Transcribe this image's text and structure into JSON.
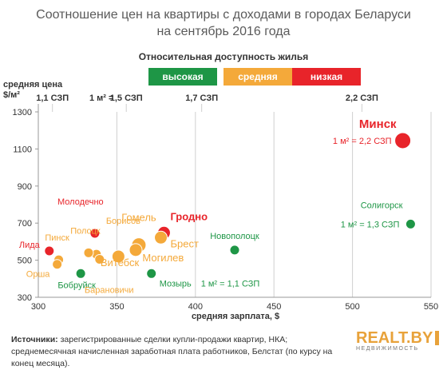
{
  "title_line1": "Соотношение цен на квартиры с доходами в городах Беларуси",
  "title_line2": "на сентябрь 2016 года",
  "legend": {
    "title": "Относительная доступность жилья",
    "items": [
      {
        "label": "высокая",
        "color": "#1e9646"
      },
      {
        "label": "средняя",
        "color": "#f4a93a"
      },
      {
        "label": "низкая",
        "color": "#e8242a"
      }
    ]
  },
  "ylabel_line1": "средняя цена",
  "ylabel_line2": "$/м²",
  "xlabel": "средняя зарплата, $",
  "ratio_ticks": {
    "prefix": "1 м² =",
    "items": [
      {
        "label": "1,1 СЗП",
        "x": 309
      },
      {
        "label": "1,5 СЗП",
        "x": 356
      },
      {
        "label": "1,7 СЗП",
        "x": 404
      },
      {
        "label": "2,2 СЗП",
        "x": 506
      }
    ]
  },
  "source_label": "Источники:",
  "source_text": "зарегистрированные сделки купли-продажи квартир, НКА; среднемесячная начисленная заработная плата работников, Белстат (по курсу на конец месяца).",
  "logo": {
    "main": "REALT.BY",
    "sub": "НЕДВИЖИМОСТЬ"
  },
  "chart_data": {
    "type": "scatter",
    "title": "Соотношение цен на квартиры с доходами в городах Беларуси на сентябрь 2016 года",
    "xlabel": "средняя зарплата, $",
    "ylabel": "средняя цена $/м²",
    "xlim": [
      300,
      550
    ],
    "ylim": [
      300,
      1300
    ],
    "x_ticks": [
      300,
      350,
      400,
      450,
      500,
      550
    ],
    "y_ticks": [
      300,
      500,
      700,
      900,
      1100,
      1300
    ],
    "grid": "vertical",
    "legend_position": "top-center",
    "points": [
      {
        "name": "Минск",
        "x": 532,
        "y": 1145,
        "category": "низкая",
        "note": "1 м² = 2,2 СЗП"
      },
      {
        "name": "Солигорск",
        "x": 537,
        "y": 695,
        "category": "высокая",
        "note": "1 м² = 1,3 СЗП"
      },
      {
        "name": "Новополоцк",
        "x": 425,
        "y": 555,
        "category": "высокая"
      },
      {
        "name": "Мозырь",
        "x": 372,
        "y": 428,
        "category": "высокая",
        "note": "1 м² = 1,1 СЗП"
      },
      {
        "name": "Бобруйск",
        "x": 327,
        "y": 428,
        "category": "высокая"
      },
      {
        "name": "Гродно",
        "x": 380,
        "y": 648,
        "category": "низкая"
      },
      {
        "name": "Молодечно",
        "x": 336,
        "y": 645,
        "category": "низкая"
      },
      {
        "name": "Лида",
        "x": 307,
        "y": 550,
        "category": "низкая"
      },
      {
        "name": "Брест",
        "x": 378,
        "y": 622,
        "category": "средняя"
      },
      {
        "name": "Гомель",
        "x": 364,
        "y": 582,
        "category": "средняя"
      },
      {
        "name": "Витебск",
        "x": 362,
        "y": 555,
        "category": "средняя"
      },
      {
        "name": "Могилев",
        "x": 351,
        "y": 520,
        "category": "средняя"
      },
      {
        "name": "Борисов",
        "x": 337,
        "y": 532,
        "category": "средняя"
      },
      {
        "name": "Полоцк",
        "x": 332,
        "y": 540,
        "category": "средняя"
      },
      {
        "name": "Барановичи",
        "x": 339,
        "y": 505,
        "category": "средняя"
      },
      {
        "name": "Пинск",
        "x": 313,
        "y": 502,
        "category": "средняя"
      },
      {
        "name": "Орша",
        "x": 312,
        "y": 478,
        "category": "средняя"
      }
    ]
  }
}
